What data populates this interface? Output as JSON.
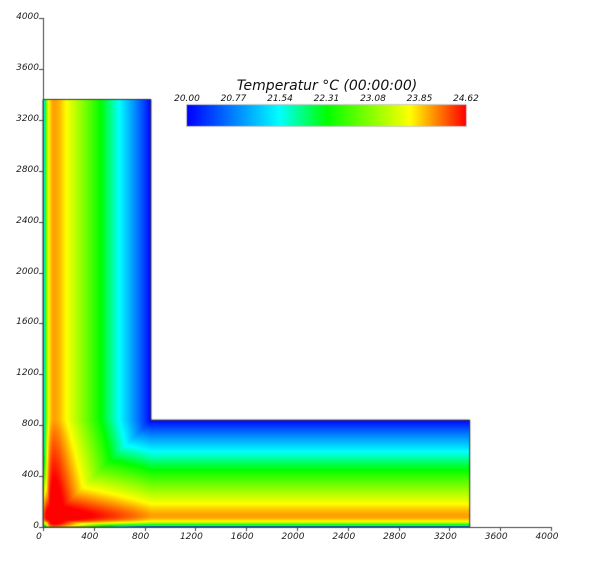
{
  "chart_data": {
    "type": "heatmap",
    "title": "",
    "xlabel": "",
    "ylabel": "",
    "xlim": [
      0,
      4000
    ],
    "ylim": [
      0,
      4000
    ],
    "x_ticks": [
      "0",
      "400",
      "800",
      "1200",
      "1600",
      "2000",
      "2400",
      "2800",
      "3200",
      "3600",
      "4000"
    ],
    "y_ticks": [
      "0",
      "400",
      "800",
      "1200",
      "1600",
      "2000",
      "2400",
      "2800",
      "3200",
      "3600",
      "4000"
    ],
    "grid": false,
    "domain_outline": [
      [
        0,
        0
      ],
      [
        3360,
        0
      ],
      [
        3360,
        840
      ],
      [
        850,
        840
      ],
      [
        850,
        3360
      ],
      [
        0,
        3360
      ]
    ],
    "colorbar": {
      "title": "Temperatur °C (00:00:00)",
      "min": 20.0,
      "max": 24.62,
      "tick_labels": [
        "20.00",
        "20.77",
        "21.54",
        "22.31",
        "23.08",
        "23.85",
        "24.62"
      ],
      "colormap": [
        "#0000ff",
        "#00ffff",
        "#00ff00",
        "#ffff00",
        "#ff0000"
      ],
      "placement": "top-center"
    }
  }
}
